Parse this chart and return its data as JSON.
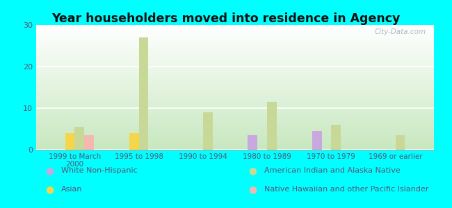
{
  "title": "Year householders moved into residence in Agency",
  "categories": [
    "1999 to March\n2000",
    "1995 to 1998",
    "1990 to 1994",
    "1980 to 1989",
    "1970 to 1979",
    "1969 or earlier"
  ],
  "series": {
    "White Non-Hispanic": [
      0,
      0,
      0,
      3.5,
      4.5,
      0
    ],
    "Asian": [
      4,
      4,
      0,
      0,
      0,
      0
    ],
    "American Indian and Alaska Native": [
      5.5,
      27,
      9,
      11.5,
      6,
      3.5
    ],
    "Native Hawaiian and other Pacific Islander": [
      3.5,
      0,
      0,
      0,
      0,
      0
    ]
  },
  "colors": {
    "White Non-Hispanic": "#c9a8e0",
    "Asian": "#f5d54a",
    "American Indian and Alaska Native": "#c8d896",
    "Native Hawaiian and other Pacific Islander": "#f5b8b0"
  },
  "ylim": [
    0,
    30
  ],
  "yticks": [
    0,
    10,
    20,
    30
  ],
  "background_color": "#00ffff",
  "watermark": "City-Data.com",
  "bar_width": 0.15
}
